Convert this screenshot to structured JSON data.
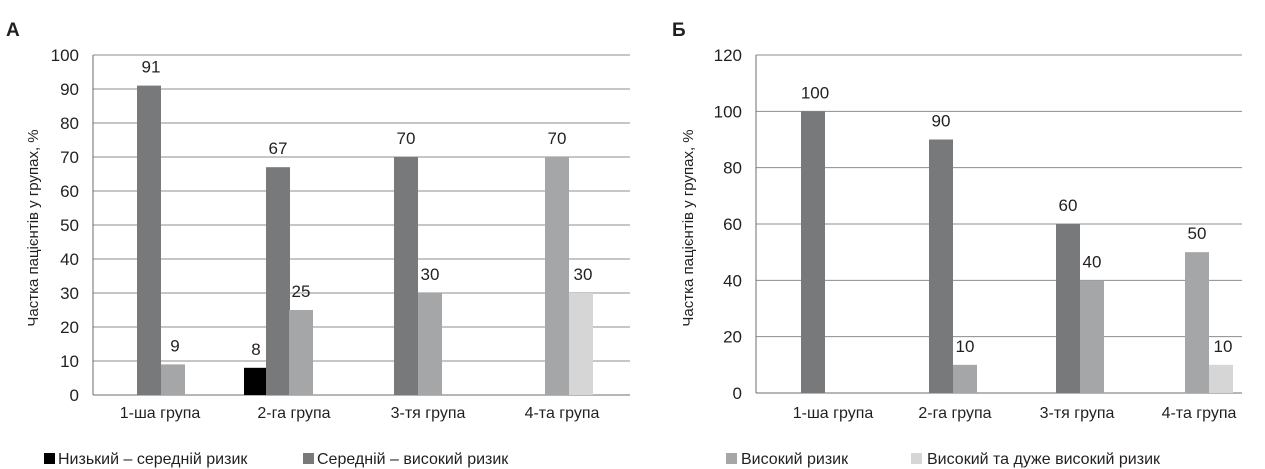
{
  "chart_data": [
    {
      "type": "bar",
      "panel": "А",
      "ylabel": "Частка пацієнтів у групах, %",
      "ylim": [
        0,
        100
      ],
      "yticks": [
        "0",
        "10",
        "20",
        "30",
        "40",
        "50",
        "60",
        "70",
        "80",
        "90",
        "100"
      ],
      "grid": true,
      "categories": [
        "1-ша група",
        "2-га група",
        "3-тя група",
        "4-та група"
      ],
      "series": [
        {
          "color": "#000000",
          "values": [
            null,
            8,
            null,
            null
          ]
        },
        {
          "color": "#77797a",
          "values": [
            91,
            67,
            70,
            null
          ]
        },
        {
          "color": "#a4a6a8",
          "values": [
            9,
            25,
            30,
            70
          ]
        },
        {
          "color": "#d6d6d7",
          "values": [
            null,
            null,
            null,
            30
          ]
        }
      ],
      "legend": [
        {
          "label": "Низький – середній ризик",
          "color": "#000000"
        },
        {
          "label": "Середній – високий ризик",
          "color": "#77797a"
        }
      ],
      "legend_position": "bottom"
    },
    {
      "type": "bar",
      "panel": "Б",
      "ylabel": "Частка пацієнтів у групах, %",
      "ylim": [
        0,
        120
      ],
      "yticks": [
        "0",
        "20",
        "40",
        "60",
        "80",
        "100",
        "120"
      ],
      "grid": true,
      "categories": [
        "1-ша група",
        "2-га група",
        "3-тя група",
        "4-та група"
      ],
      "series": [
        {
          "color": "#77797a",
          "values": [
            100,
            90,
            60,
            null
          ]
        },
        {
          "color": "#a4a6a8",
          "values": [
            null,
            10,
            40,
            50
          ]
        },
        {
          "color": "#d6d6d7",
          "values": [
            null,
            null,
            null,
            10
          ]
        }
      ],
      "legend": [
        {
          "label": "Високий ризик",
          "color": "#a4a6a8"
        },
        {
          "label": "Високий та дуже високий ризик",
          "color": "#d6d6d7"
        }
      ],
      "legend_position": "bottom"
    }
  ]
}
